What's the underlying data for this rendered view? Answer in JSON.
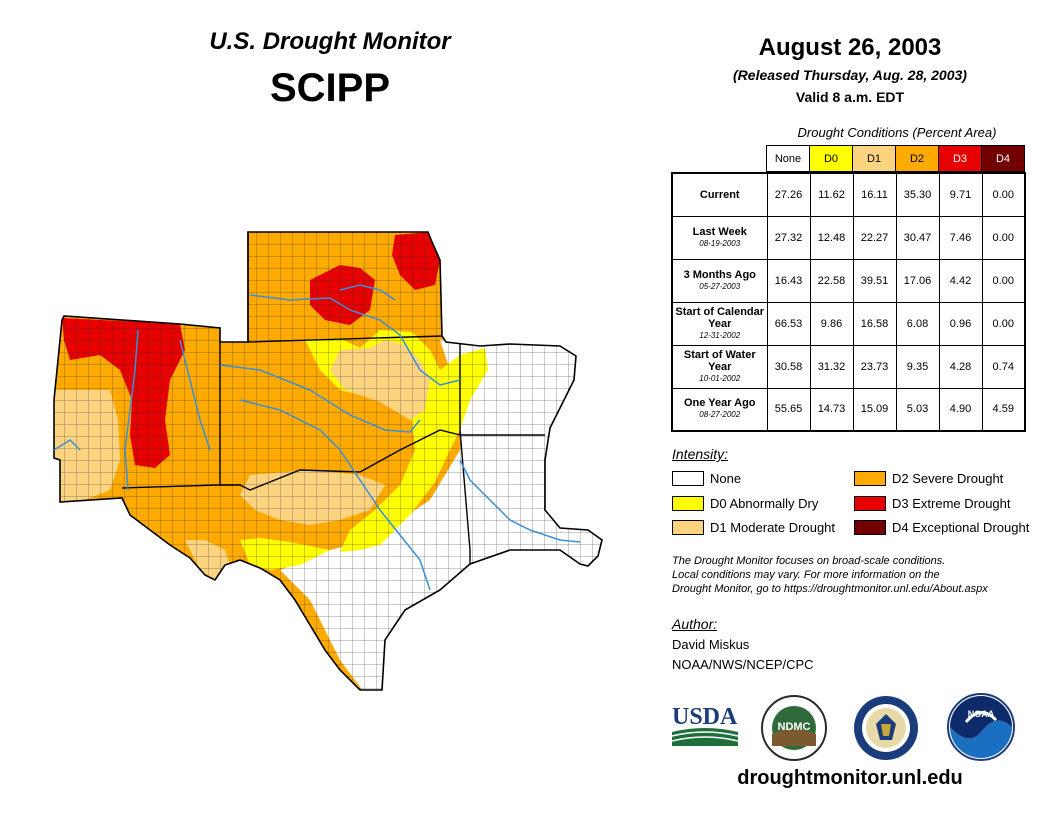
{
  "header": {
    "title": "U.S. Drought Monitor",
    "region": "SCIPP",
    "date": "August 26, 2003",
    "released": "(Released Thursday, Aug. 28, 2003)",
    "valid": "Valid 8 a.m. EDT"
  },
  "table": {
    "caption": "Drought Conditions (Percent Area)",
    "columns": [
      {
        "label": "None",
        "color": "#ffffff",
        "text_color": "#000000"
      },
      {
        "label": "D0",
        "color": "#ffff00",
        "text_color": "#000000"
      },
      {
        "label": "D1",
        "color": "#fcd37f",
        "text_color": "#000000"
      },
      {
        "label": "D2",
        "color": "#ffaa00",
        "text_color": "#000000"
      },
      {
        "label": "D3",
        "color": "#e60000",
        "text_color": "#ffffff"
      },
      {
        "label": "D4",
        "color": "#730000",
        "text_color": "#ffffff"
      }
    ],
    "rows": [
      {
        "label": "Current",
        "sub": "",
        "values": [
          "27.26",
          "11.62",
          "16.11",
          "35.30",
          "9.71",
          "0.00"
        ]
      },
      {
        "label": "Last Week",
        "sub": "08-19-2003",
        "values": [
          "27.32",
          "12.48",
          "22.27",
          "30.47",
          "7.46",
          "0.00"
        ]
      },
      {
        "label": "3 Months Ago",
        "sub": "05-27-2003",
        "values": [
          "16.43",
          "22.58",
          "39.51",
          "17.06",
          "4.42",
          "0.00"
        ]
      },
      {
        "label": "Start of Calendar Year",
        "sub": "12-31-2002",
        "values": [
          "66.53",
          "9.86",
          "16.58",
          "6.08",
          "0.96",
          "0.00"
        ]
      },
      {
        "label": "Start of Water Year",
        "sub": "10-01-2002",
        "values": [
          "30.58",
          "31.32",
          "23.73",
          "9.35",
          "4.28",
          "0.74"
        ]
      },
      {
        "label": "One Year Ago",
        "sub": "08-27-2002",
        "values": [
          "55.65",
          "14.73",
          "15.09",
          "5.03",
          "4.90",
          "4.59"
        ]
      }
    ]
  },
  "legend": {
    "title": "Intensity:",
    "items": [
      {
        "label": "None",
        "color": "#ffffff"
      },
      {
        "label": "D0 Abnormally Dry",
        "color": "#ffff00"
      },
      {
        "label": "D1 Moderate Drought",
        "color": "#fcd37f"
      },
      {
        "label": "D2 Severe Drought",
        "color": "#ffaa00"
      },
      {
        "label": "D3 Extreme Drought",
        "color": "#e60000"
      },
      {
        "label": "D4 Exceptional Drought",
        "color": "#730000"
      }
    ]
  },
  "note": {
    "line1": "The Drought Monitor focuses on broad-scale conditions.",
    "line2": "Local conditions may vary. For more information on the",
    "line3": "Drought Monitor, go to https://droughtmonitor.unl.edu/About.aspx"
  },
  "author": {
    "title": "Author:",
    "name": "David Miskus",
    "org": "NOAA/NWS/NCEP/CPC"
  },
  "logos": {
    "usda": "USDA",
    "ndmc": "NDMC",
    "noaa": "NOAA"
  },
  "footer": {
    "site": "droughtmonitor.unl.edu"
  },
  "colors": {
    "river": "#3b8fd8",
    "county_lines": "#333333"
  }
}
